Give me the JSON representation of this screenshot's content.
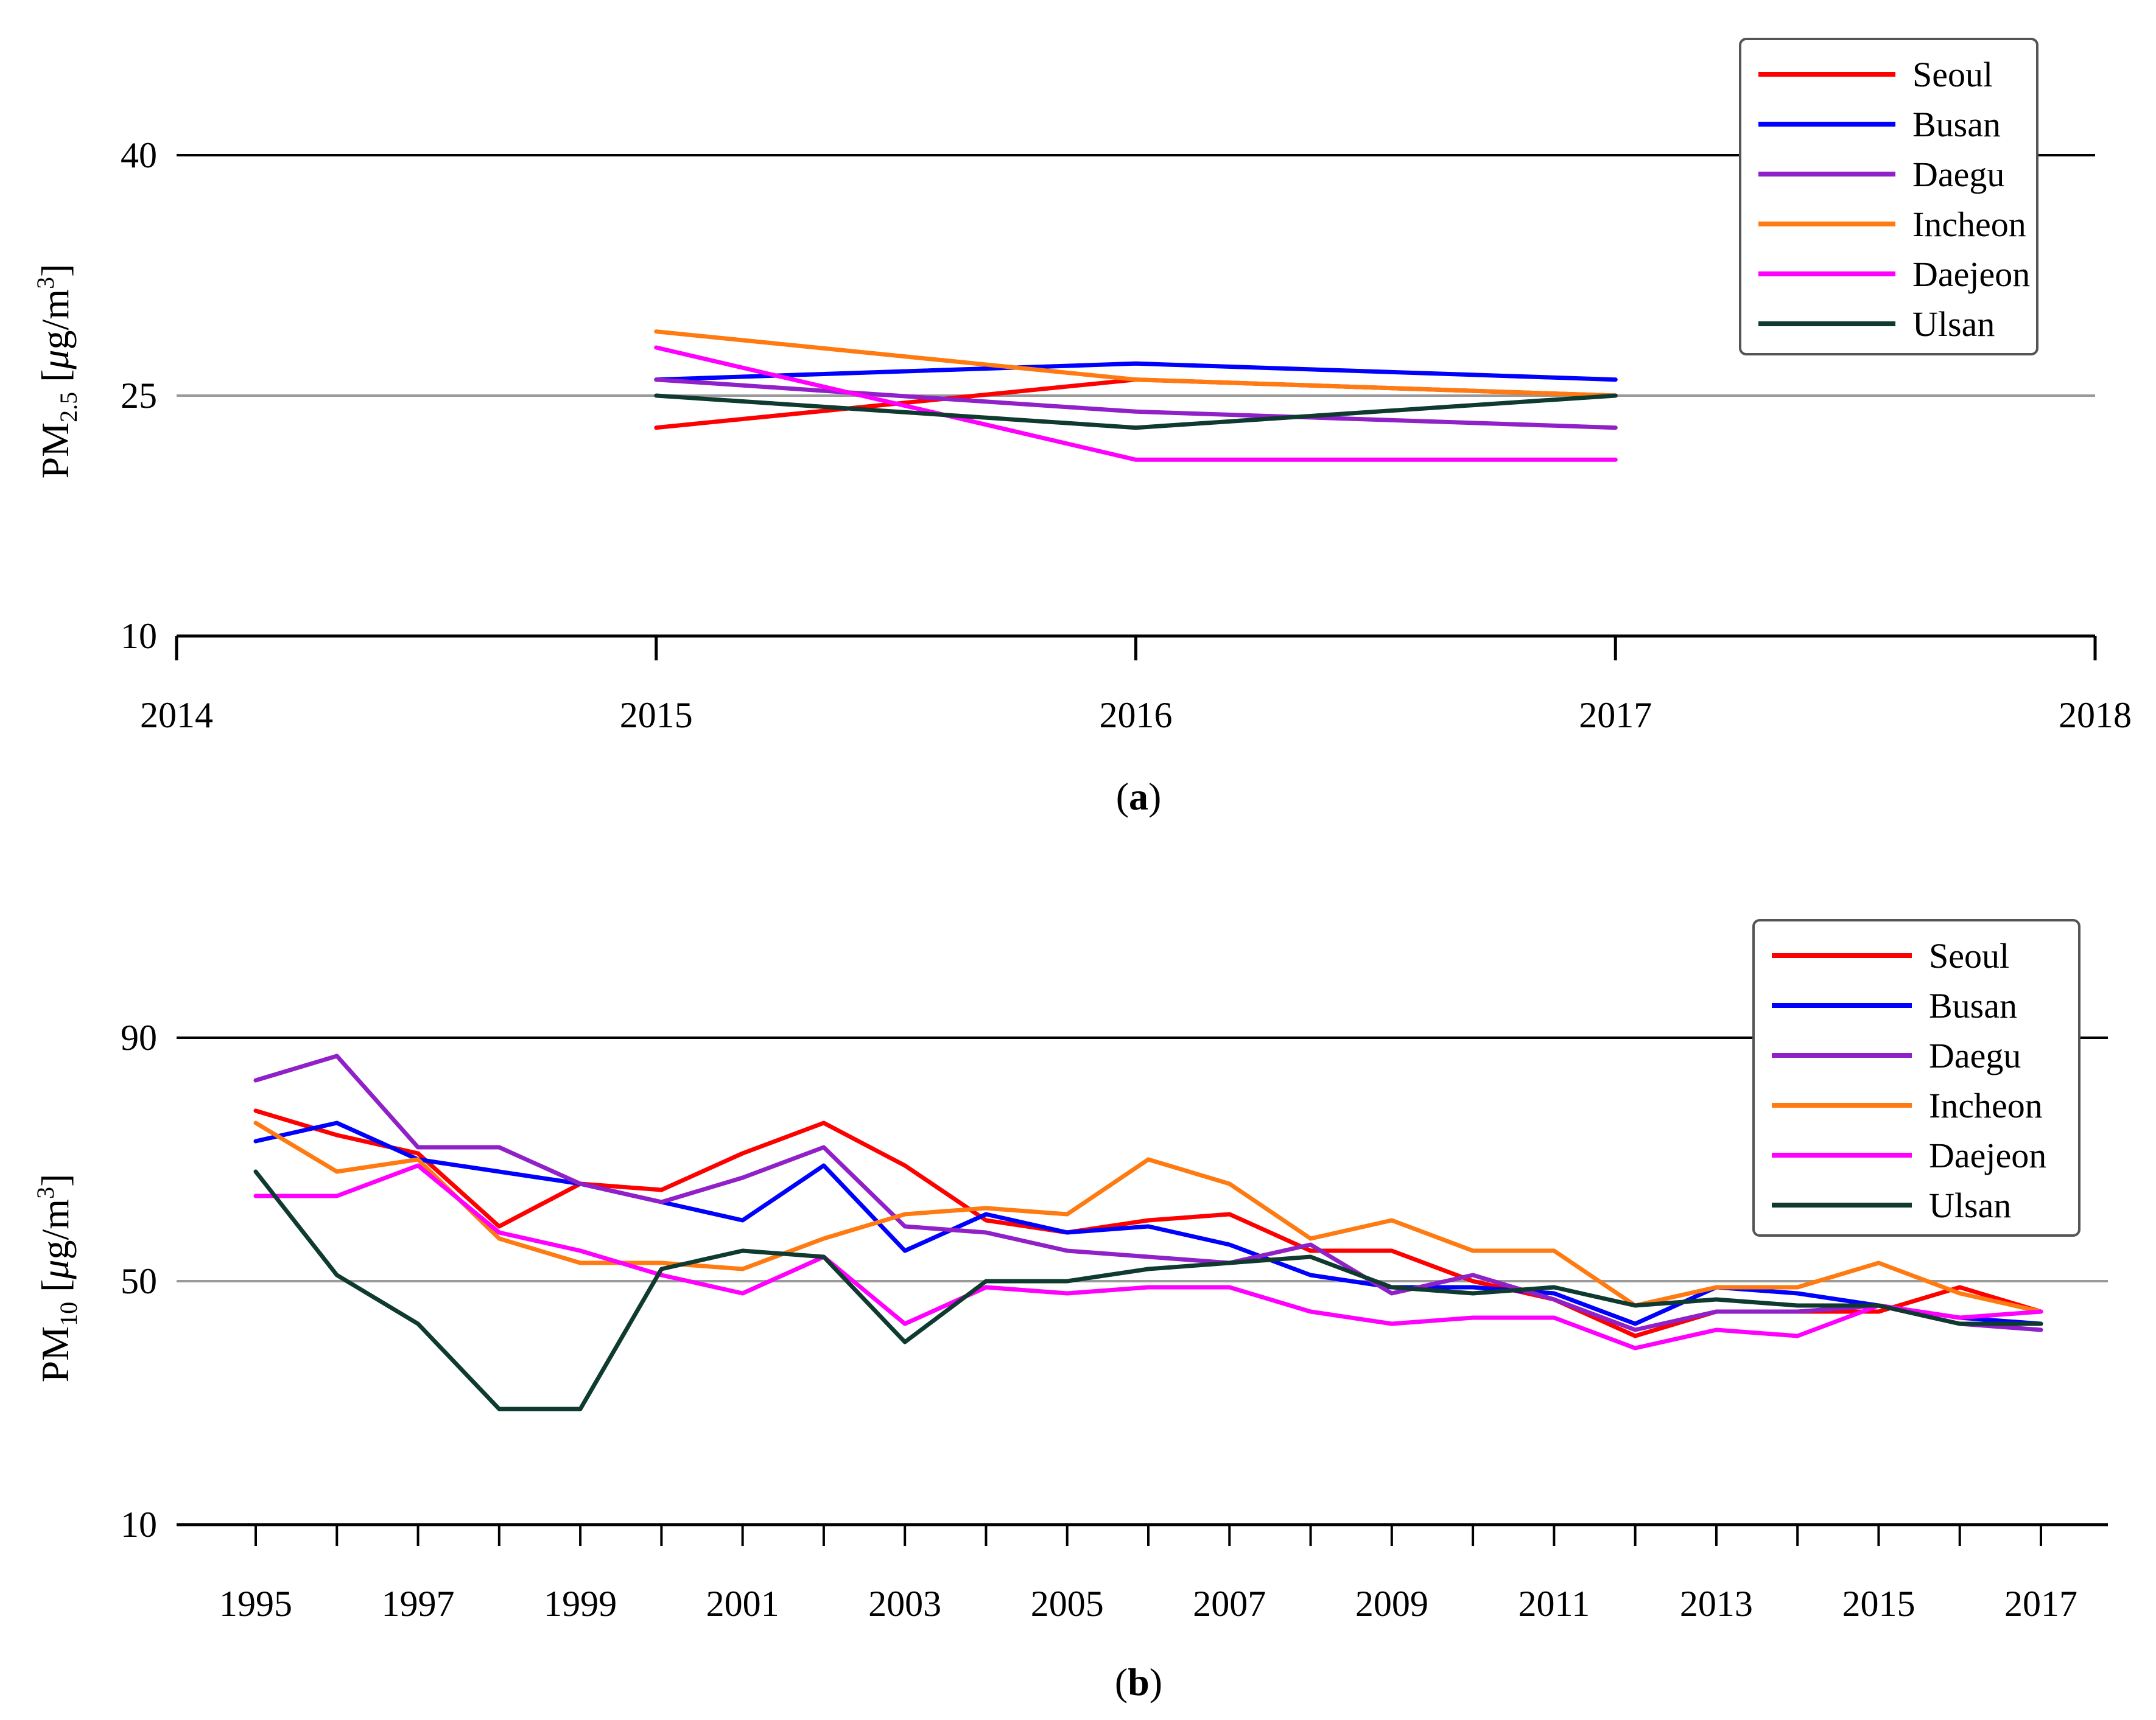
{
  "chart_data": [
    {
      "type": "line",
      "caption": "(a)",
      "caption_letter": "a",
      "ylabel": "PM2.5 [μg/m3]",
      "ylabel_parts": {
        "base": "PM",
        "sub": "2.5",
        "unit_open": " [",
        "mu": "μ",
        "unit": "g/m",
        "sup": "3",
        "unit_close": "]"
      },
      "xlim": [
        2014,
        2018
      ],
      "ylim": [
        10,
        40
      ],
      "x_ticks": [
        "2014",
        "2015",
        "2016",
        "2017",
        "2018"
      ],
      "y_ticks": [
        "10",
        "25",
        "40"
      ],
      "x": [
        2015,
        2016,
        2017
      ],
      "series": [
        {
          "name": "Seoul",
          "color": "#ff0000",
          "values": [
            23,
            26,
            25
          ]
        },
        {
          "name": "Busan",
          "color": "#0000ff",
          "values": [
            26,
            27,
            26
          ]
        },
        {
          "name": "Daegu",
          "color": "#9020c8",
          "values": [
            26,
            24,
            23
          ]
        },
        {
          "name": "Incheon",
          "color": "#ff7a10",
          "values": [
            29,
            26,
            25
          ]
        },
        {
          "name": "Daejeon",
          "color": "#ff00ff",
          "values": [
            28,
            21,
            21
          ]
        },
        {
          "name": "Ulsan",
          "color": "#0f3a30",
          "values": [
            25,
            23,
            25
          ]
        }
      ]
    },
    {
      "type": "line",
      "caption": "(b)",
      "caption_letter": "b",
      "ylabel": "PM10 [μg/m3]",
      "ylabel_parts": {
        "base": "PM",
        "sub": "10",
        "unit_open": " [",
        "mu": "μ",
        "unit": "g/m",
        "sup": "3",
        "unit_close": "]"
      },
      "xlim": [
        1995,
        2017
      ],
      "ylim": [
        10,
        90
      ],
      "x_ticks": [
        "1995",
        "1997",
        "1999",
        "2001",
        "2003",
        "2005",
        "2007",
        "2009",
        "2011",
        "2013",
        "2015",
        "2017"
      ],
      "y_ticks": [
        "10",
        "50",
        "90"
      ],
      "x": [
        1995,
        1996,
        1997,
        1998,
        1999,
        2000,
        2001,
        2002,
        2003,
        2004,
        2005,
        2006,
        2007,
        2008,
        2009,
        2010,
        2011,
        2012,
        2013,
        2014,
        2015,
        2016,
        2017
      ],
      "series": [
        {
          "name": "Seoul",
          "color": "#ff0000",
          "values": [
            78,
            74,
            71,
            59,
            66,
            65,
            71,
            76,
            69,
            60,
            58,
            60,
            61,
            55,
            55,
            50,
            47,
            41,
            45,
            45,
            45,
            49,
            45
          ]
        },
        {
          "name": "Busan",
          "color": "#0000ff",
          "values": [
            73,
            76,
            70,
            68,
            66,
            63,
            60,
            69,
            55,
            61,
            58,
            59,
            56,
            51,
            49,
            49,
            48,
            43,
            49,
            48,
            46,
            44,
            43
          ]
        },
        {
          "name": "Daegu",
          "color": "#9020c8",
          "values": [
            83,
            87,
            72,
            72,
            66,
            63,
            67,
            72,
            59,
            58,
            55,
            54,
            53,
            56,
            48,
            51,
            47,
            42,
            45,
            45,
            46,
            43,
            42
          ]
        },
        {
          "name": "Incheon",
          "color": "#ff7a10",
          "values": [
            76,
            68,
            70,
            57,
            53,
            53,
            52,
            57,
            61,
            62,
            61,
            70,
            66,
            57,
            60,
            55,
            55,
            46,
            49,
            49,
            53,
            48,
            45
          ]
        },
        {
          "name": "Daejeon",
          "color": "#ff00ff",
          "values": [
            64,
            64,
            69,
            58,
            55,
            51,
            48,
            54,
            43,
            49,
            48,
            49,
            49,
            45,
            43,
            44,
            44,
            39,
            42,
            41,
            46,
            44,
            45
          ]
        },
        {
          "name": "Ulsan",
          "color": "#0f3a30",
          "values": [
            68,
            51,
            43,
            29,
            29,
            52,
            55,
            54,
            40,
            50,
            50,
            52,
            53,
            54,
            49,
            48,
            49,
            46,
            47,
            46,
            46,
            43,
            43
          ]
        }
      ]
    }
  ]
}
